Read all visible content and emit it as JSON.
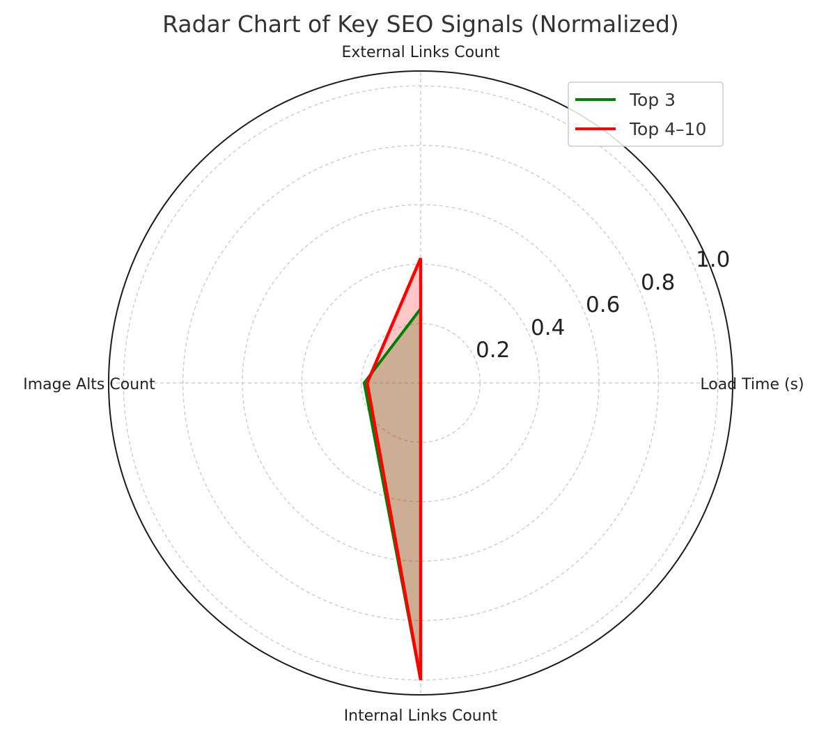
{
  "chart_data": {
    "type": "radar",
    "title": "Radar Chart of Key SEO Signals (Normalized)",
    "axes": [
      "Load Time (s)",
      "External Links Count",
      "Image Alts Count",
      "Internal Links Count"
    ],
    "radial_ticks": [
      "0.2",
      "0.4",
      "0.6",
      "0.8",
      "1.0"
    ],
    "rlim": [
      0,
      1.05
    ],
    "grid": true,
    "legend_position": "top-right",
    "series": [
      {
        "name": "Top 3",
        "color": "#008000",
        "values": [
          0.0,
          0.25,
          0.19,
          1.0
        ]
      },
      {
        "name": "Top 4–10",
        "color": "#ff0000",
        "values": [
          0.0,
          0.42,
          0.18,
          1.0
        ]
      }
    ]
  }
}
